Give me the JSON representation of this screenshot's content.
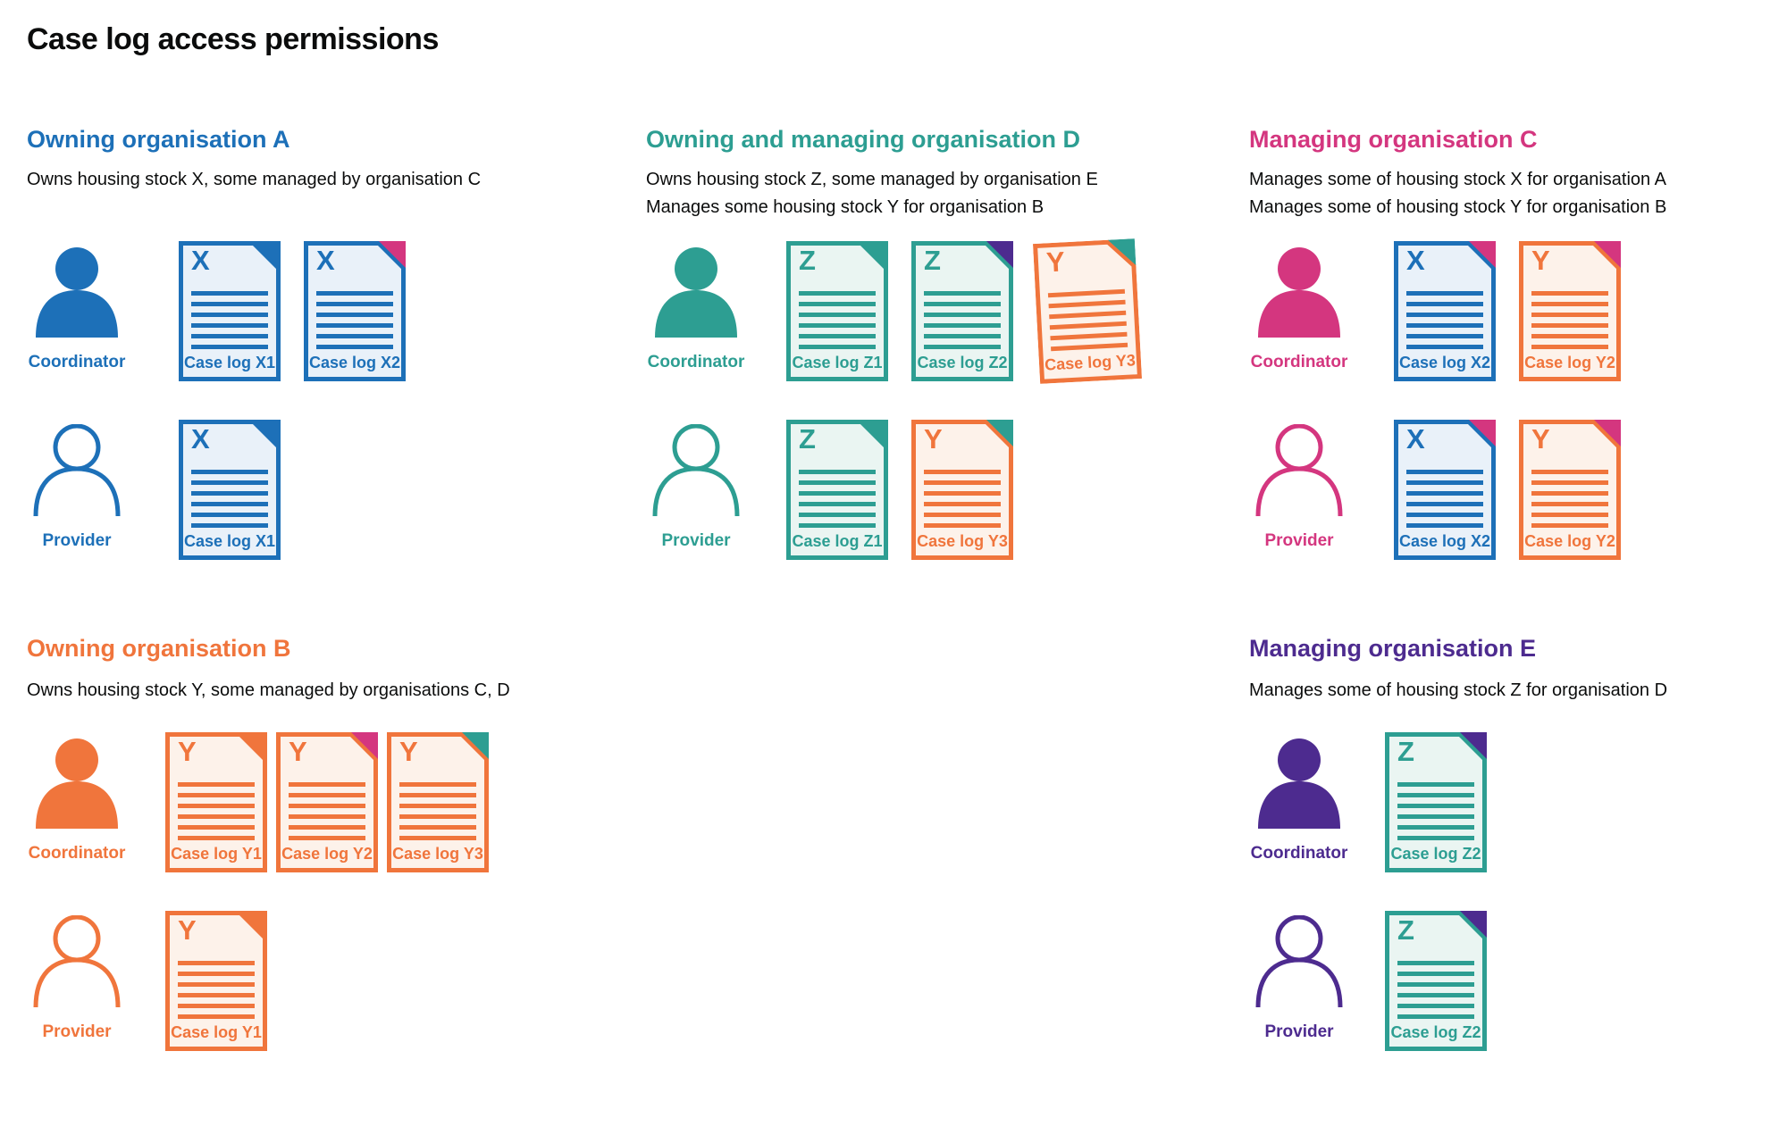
{
  "title": "Case log access permissions",
  "colors": {
    "blue": "#1d70b8",
    "teal": "#2d9e92",
    "pink": "#d4367f",
    "orange": "#f0753c",
    "purple": "#4d2b8f",
    "text": "#0b0c0c",
    "tints": {
      "blue": "#e9f1f9",
      "teal": "#eaf5f2",
      "orange": "#fdf2ea"
    }
  },
  "sections": [
    {
      "id": "org-a",
      "heading": "Owning organisation A",
      "color": "blue",
      "position": "top",
      "description": [
        "Owns housing stock X, some managed by organisation C"
      ],
      "rows": [
        {
          "role": "Coordinator",
          "person_style": "filled",
          "docs": [
            {
              "letter": "X",
              "label": "Case log X1",
              "color": "blue",
              "fold": "blue",
              "tilted": false
            },
            {
              "letter": "X",
              "label": "Case log X2",
              "color": "blue",
              "fold": "pink",
              "tilted": false
            }
          ]
        },
        {
          "role": "Provider",
          "person_style": "outline",
          "docs": [
            {
              "letter": "X",
              "label": "Case log X1",
              "color": "blue",
              "fold": "blue",
              "tilted": false
            }
          ]
        }
      ]
    },
    {
      "id": "org-d",
      "heading": "Owning and managing organisation D",
      "color": "teal",
      "position": "top",
      "description": [
        "Owns housing stock Z, some managed by organisation E",
        "Manages some housing stock Y for organisation B"
      ],
      "rows": [
        {
          "role": "Coordinator",
          "person_style": "filled",
          "docs": [
            {
              "letter": "Z",
              "label": "Case log Z1",
              "color": "teal",
              "fold": "teal",
              "tilted": false
            },
            {
              "letter": "Z",
              "label": "Case log Z2",
              "color": "teal",
              "fold": "purple",
              "tilted": false
            },
            {
              "letter": "Y",
              "label": "Case log Y3",
              "color": "orange",
              "fold": "teal",
              "tilted": true
            }
          ]
        },
        {
          "role": "Provider",
          "person_style": "outline",
          "docs": [
            {
              "letter": "Z",
              "label": "Case log Z1",
              "color": "teal",
              "fold": "teal",
              "tilted": false
            },
            {
              "letter": "Y",
              "label": "Case log Y3",
              "color": "orange",
              "fold": "teal",
              "tilted": false
            }
          ]
        }
      ]
    },
    {
      "id": "org-c",
      "heading": "Managing organisation C",
      "color": "pink",
      "position": "top",
      "description": [
        "Manages some of housing stock X for organisation A",
        "Manages some of housing stock Y for organisation B"
      ],
      "rows": [
        {
          "role": "Coordinator",
          "person_style": "filled",
          "docs": [
            {
              "letter": "X",
              "label": "Case log X2",
              "color": "blue",
              "fold": "pink",
              "tilted": false
            },
            {
              "letter": "Y",
              "label": "Case log Y2",
              "color": "orange",
              "fold": "pink",
              "tilted": false
            }
          ]
        },
        {
          "role": "Provider",
          "person_style": "outline",
          "docs": [
            {
              "letter": "X",
              "label": "Case log X2",
              "color": "blue",
              "fold": "pink",
              "tilted": false
            },
            {
              "letter": "Y",
              "label": "Case log Y2",
              "color": "orange",
              "fold": "pink",
              "tilted": false
            }
          ]
        }
      ]
    },
    {
      "id": "org-b",
      "heading": "Owning organisation B",
      "color": "orange",
      "position": "bottom",
      "description": [
        "Owns housing stock Y, some managed by organisations C, D"
      ],
      "rows": [
        {
          "role": "Coordinator",
          "person_style": "filled",
          "docs": [
            {
              "letter": "Y",
              "label": "Case log Y1",
              "color": "orange",
              "fold": "orange",
              "tilted": false
            },
            {
              "letter": "Y",
              "label": "Case log Y2",
              "color": "orange",
              "fold": "pink",
              "tilted": false
            },
            {
              "letter": "Y",
              "label": "Case log Y3",
              "color": "orange",
              "fold": "teal",
              "tilted": false
            }
          ]
        },
        {
          "role": "Provider",
          "person_style": "outline",
          "docs": [
            {
              "letter": "Y",
              "label": "Case log Y1",
              "color": "orange",
              "fold": "orange",
              "tilted": false
            }
          ]
        }
      ]
    },
    {
      "id": "org-e",
      "heading": "Managing organisation E",
      "color": "purple",
      "position": "bottom",
      "description": [
        "Manages some of housing stock Z for organisation D"
      ],
      "rows": [
        {
          "role": "Coordinator",
          "person_style": "filled",
          "docs": [
            {
              "letter": "Z",
              "label": "Case log Z2",
              "color": "teal",
              "fold": "purple",
              "tilted": false
            }
          ]
        },
        {
          "role": "Provider",
          "person_style": "outline",
          "docs": [
            {
              "letter": "Z",
              "label": "Case log Z2",
              "color": "teal",
              "fold": "purple",
              "tilted": false
            }
          ]
        }
      ]
    }
  ]
}
